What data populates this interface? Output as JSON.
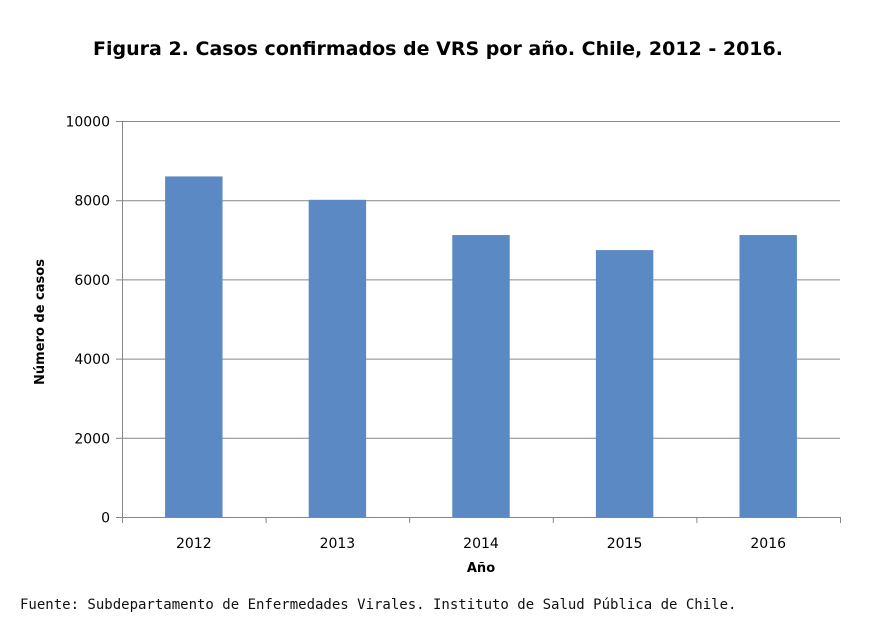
{
  "chart_data": {
    "type": "bar",
    "title": "Figura 2. Casos confirmados de VRS por año. Chile, 2012 - 2016.",
    "xlabel": "Año",
    "ylabel": "Número de casos",
    "categories": [
      "2012",
      "2013",
      "2014",
      "2015",
      "2016"
    ],
    "values": [
      8600,
      8010,
      7120,
      6740,
      7120
    ],
    "ylim": [
      0,
      10000
    ],
    "yticks": [
      0,
      2000,
      4000,
      6000,
      8000,
      10000
    ],
    "grid": true,
    "legend": "none",
    "bar_color": "#5b89c4"
  },
  "source_note": "Fuente: Subdepartamento de Enfermedades Virales. Instituto de Salud Pública de Chile."
}
